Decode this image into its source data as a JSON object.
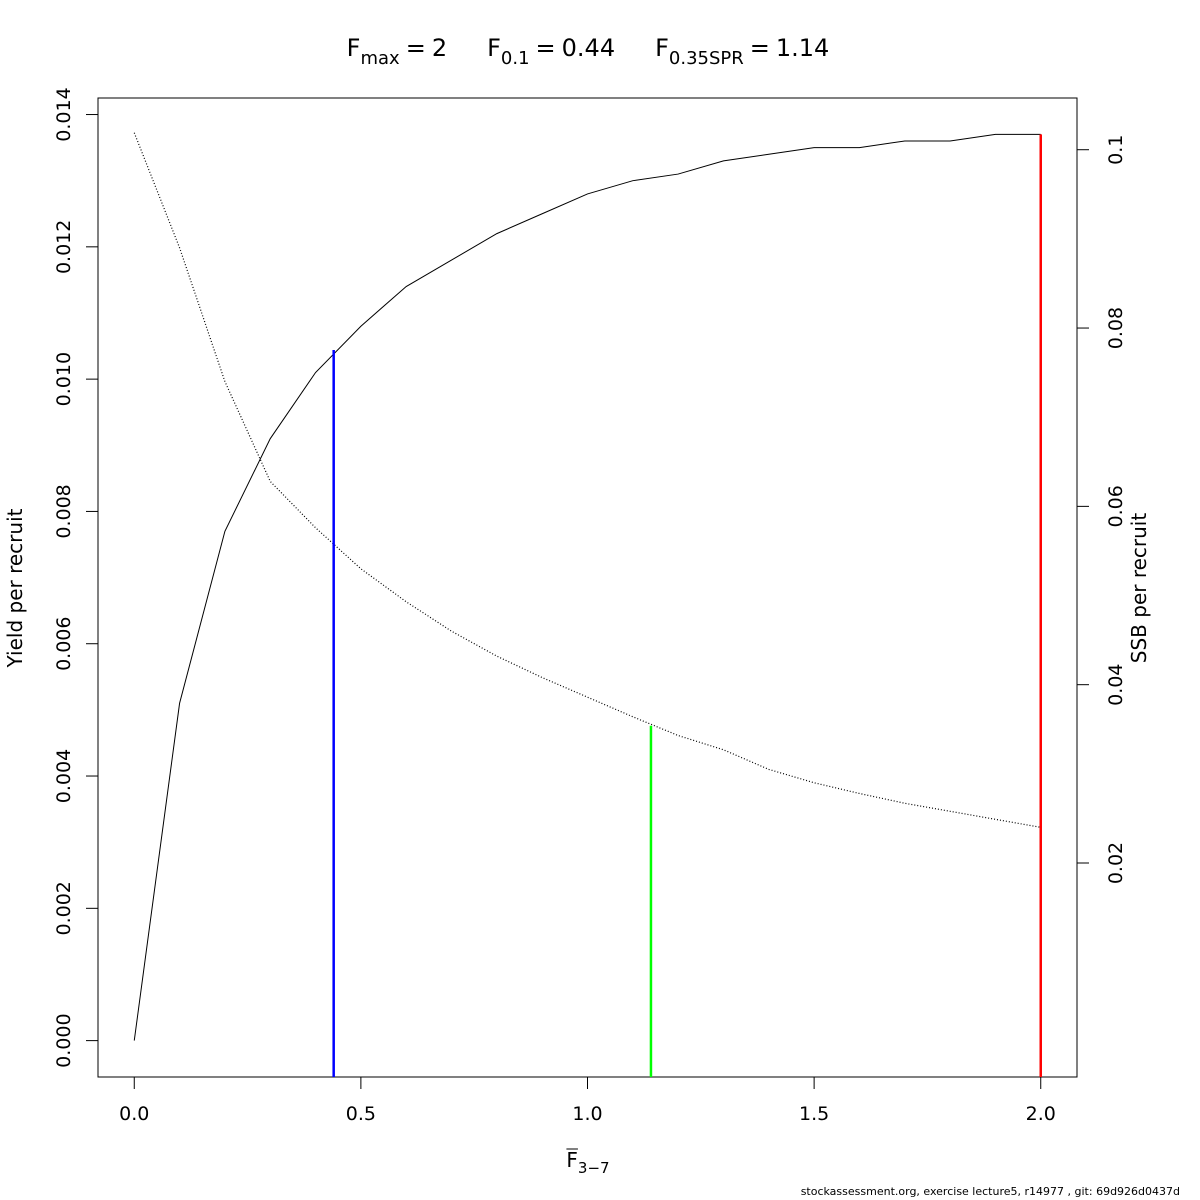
{
  "chart_data": {
    "type": "line",
    "title": [
      {
        "symbol": "F",
        "subscript": "max",
        "relation": "=",
        "value": 2
      },
      {
        "symbol": "F",
        "subscript": "0.1",
        "relation": "=",
        "value": 0.44
      },
      {
        "symbol": "F",
        "subscript": "0.35SPR",
        "relation": "=",
        "value": 1.14
      }
    ],
    "xlabel": {
      "symbol": "F",
      "subscript": "3−7"
    },
    "ylabel": "Yield per recruit",
    "y2label": "SSB per recruit",
    "footnote": "stockassessment.org, exercise  lecture5, r14977 , git: 69d926d0437d",
    "x": [
      0,
      0.1,
      0.2,
      0.3,
      0.4,
      0.5,
      0.6,
      0.7,
      0.8,
      0.9,
      1.0,
      1.1,
      1.2,
      1.3,
      1.4,
      1.5,
      1.6,
      1.7,
      1.8,
      1.9,
      2.0
    ],
    "series": [
      {
        "color": "#000000",
        "style": "solid",
        "axis": "y",
        "values": [
          0,
          0.0051,
          0.0077,
          0.0091,
          0.0101,
          0.0108,
          0.0114,
          0.0118,
          0.0122,
          0.0125,
          0.0128,
          0.013,
          0.0131,
          0.0133,
          0.0134,
          0.0135,
          0.0135,
          0.0136,
          0.0136,
          0.0137,
          0.0137
        ]
      },
      {
        "color": "#000000",
        "style": "dotted",
        "axis": "y2",
        "values": [
          0.1019,
          0.089,
          0.074,
          0.0628,
          0.0576,
          0.053,
          0.0493,
          0.046,
          0.0432,
          0.0408,
          0.0386,
          0.0364,
          0.0343,
          0.0327,
          0.0305,
          0.029,
          0.0278,
          0.0267,
          0.0258,
          0.0249,
          0.024
        ]
      }
    ],
    "reference_lines": [
      {
        "x": 0.44,
        "y": 0.01044,
        "axis": "y",
        "color": "#0000ff"
      },
      {
        "x": 1.14,
        "y": 0.0354,
        "axis": "y2",
        "color": "#00ff00"
      },
      {
        "x": 2,
        "y": 0.0137,
        "axis": "y",
        "color": "#ff0000"
      }
    ],
    "xlim": [
      -0.08,
      2.08
    ],
    "xticks": [
      {
        "value": 0,
        "label": "0.0"
      },
      0.5,
      {
        "value": 1,
        "label": "1.0"
      },
      1.5,
      {
        "value": 2,
        "label": "2.0"
      }
    ],
    "ylim": [
      -0.00055,
      0.01425
    ],
    "yticks": [
      {
        "value": 0,
        "label": "0.000"
      },
      0.002,
      0.004,
      0.006,
      0.008,
      {
        "value": 0.01,
        "label": "0.010"
      },
      0.012,
      0.014
    ],
    "y2lim": [
      -0.004,
      0.1058
    ],
    "y2ticks": [
      0.02,
      0.04,
      0.06,
      0.08,
      0.1
    ]
  }
}
